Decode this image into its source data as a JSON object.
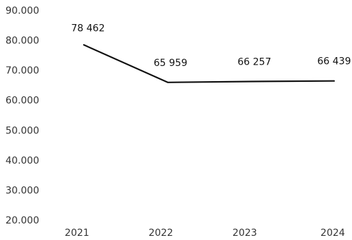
{
  "chart_data": {
    "type": "line",
    "categories": [
      "2021",
      "2022",
      "2023",
      "2024"
    ],
    "series": [
      {
        "values": [
          78462,
          65959,
          66257,
          66439
        ],
        "labels": [
          "78 462",
          "65 959",
          "66 257",
          "66 439"
        ]
      }
    ],
    "y_ticks": [
      20000,
      30000,
      40000,
      50000,
      60000,
      70000,
      80000,
      90000
    ],
    "y_tick_labels": [
      "20.000",
      "30.000",
      "40.000",
      "50.000",
      "60.000",
      "70.000",
      "80.000",
      "90.000"
    ],
    "ylim": [
      20000,
      90000
    ],
    "grid": false,
    "legend": "none",
    "line_color": "#111111"
  }
}
